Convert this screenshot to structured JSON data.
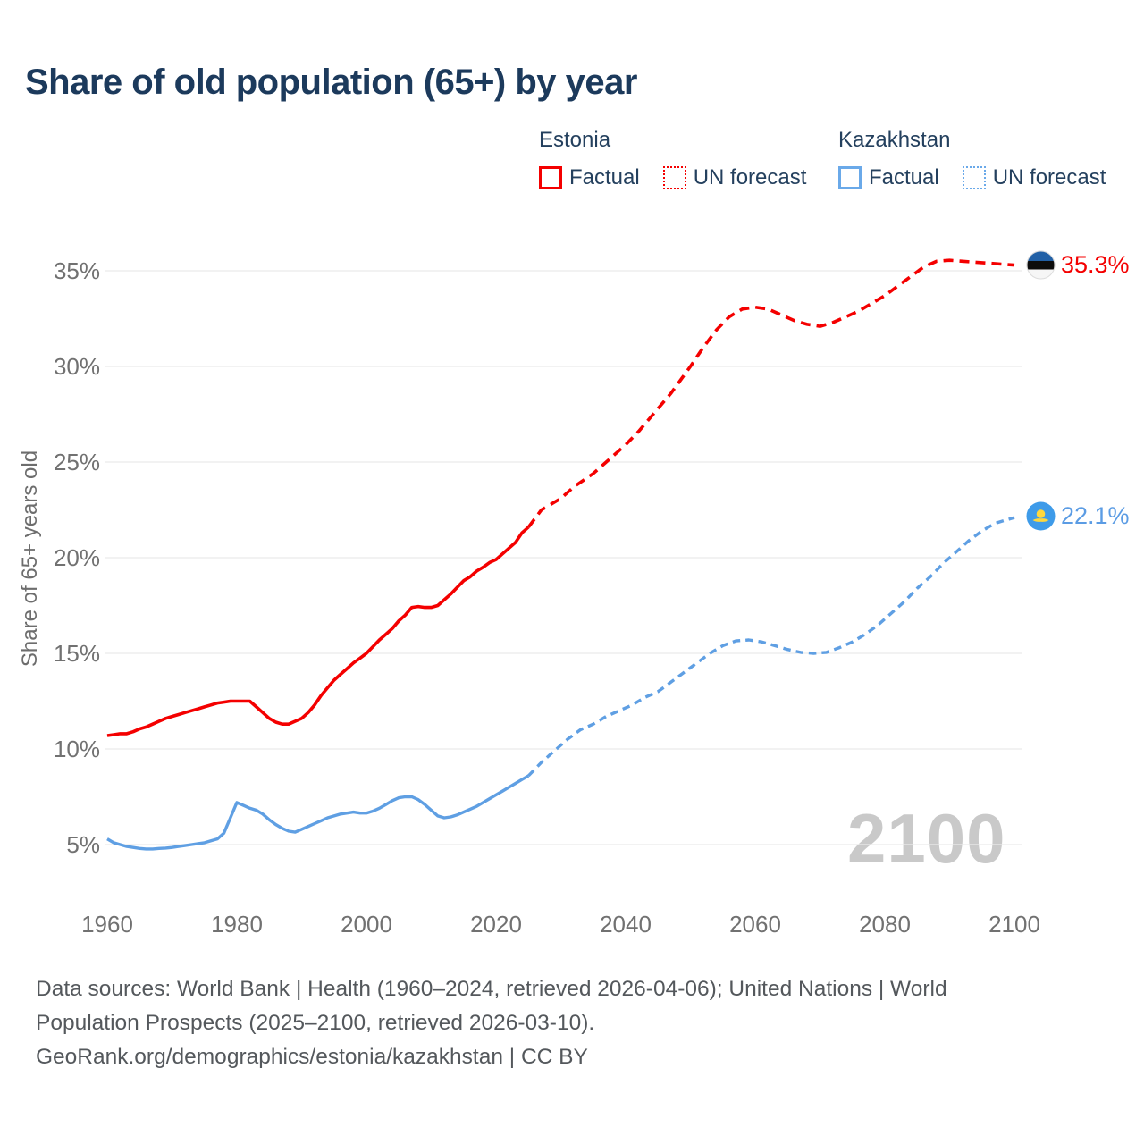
{
  "header": {
    "title": "Share of old population (65+) by year"
  },
  "legend": {
    "estonia": {
      "title": "Estonia",
      "factual_label": "Factual",
      "forecast_label": "UN forecast",
      "color": "#f40000"
    },
    "kazakhstan": {
      "title": "Kazakhstan",
      "factual_label": "Factual",
      "forecast_label": "UN forecast",
      "color": "#6aa9e9"
    }
  },
  "chart_data": {
    "type": "line",
    "title": "Share of old population (65+) by year",
    "xlabel": "",
    "ylabel": "Share of 65+ years old",
    "watermark": "2100",
    "grid": "horizontal-only",
    "gridline_color": "#ebebeb",
    "tick_color": "#717171",
    "x_ticks": [
      1960,
      1980,
      2000,
      2020,
      2040,
      2060,
      2080,
      2100
    ],
    "y_ticks": [
      5,
      10,
      15,
      20,
      25,
      30,
      35
    ],
    "y_tick_suffix": "%",
    "xlim": [
      1960,
      2100
    ],
    "ylim": [
      5,
      35
    ],
    "series": [
      {
        "name": "Estonia Factual",
        "country": "Estonia",
        "kind": "factual",
        "style": "solid",
        "color": "#f40000",
        "width": 3.6,
        "points": [
          [
            1960,
            10.7
          ],
          [
            1961,
            10.75
          ],
          [
            1962,
            10.8
          ],
          [
            1963,
            10.8
          ],
          [
            1964,
            10.9
          ],
          [
            1965,
            11.05
          ],
          [
            1966,
            11.15
          ],
          [
            1967,
            11.3
          ],
          [
            1968,
            11.45
          ],
          [
            1969,
            11.6
          ],
          [
            1970,
            11.7
          ],
          [
            1971,
            11.8
          ],
          [
            1972,
            11.9
          ],
          [
            1973,
            12.0
          ],
          [
            1974,
            12.1
          ],
          [
            1975,
            12.2
          ],
          [
            1976,
            12.3
          ],
          [
            1977,
            12.4
          ],
          [
            1978,
            12.45
          ],
          [
            1979,
            12.5
          ],
          [
            1980,
            12.5
          ],
          [
            1981,
            12.5
          ],
          [
            1982,
            12.5
          ],
          [
            1983,
            12.2
          ],
          [
            1984,
            11.9
          ],
          [
            1985,
            11.6
          ],
          [
            1986,
            11.4
          ],
          [
            1987,
            11.3
          ],
          [
            1988,
            11.3
          ],
          [
            1989,
            11.45
          ],
          [
            1990,
            11.6
          ],
          [
            1991,
            11.9
          ],
          [
            1992,
            12.3
          ],
          [
            1993,
            12.8
          ],
          [
            1994,
            13.2
          ],
          [
            1995,
            13.6
          ],
          [
            1996,
            13.9
          ],
          [
            1997,
            14.2
          ],
          [
            1998,
            14.5
          ],
          [
            1999,
            14.75
          ],
          [
            2000,
            15.0
          ],
          [
            2001,
            15.35
          ],
          [
            2002,
            15.7
          ],
          [
            2003,
            16.0
          ],
          [
            2004,
            16.3
          ],
          [
            2005,
            16.7
          ],
          [
            2006,
            17.0
          ],
          [
            2007,
            17.4
          ],
          [
            2008,
            17.45
          ],
          [
            2009,
            17.4
          ],
          [
            2010,
            17.4
          ],
          [
            2011,
            17.5
          ],
          [
            2012,
            17.8
          ],
          [
            2013,
            18.1
          ],
          [
            2014,
            18.45
          ],
          [
            2015,
            18.8
          ],
          [
            2016,
            19.0
          ],
          [
            2017,
            19.3
          ],
          [
            2018,
            19.5
          ],
          [
            2019,
            19.75
          ],
          [
            2020,
            19.9
          ],
          [
            2021,
            20.2
          ],
          [
            2022,
            20.5
          ],
          [
            2023,
            20.8
          ],
          [
            2024,
            21.3
          ],
          [
            2025,
            21.6
          ]
        ]
      },
      {
        "name": "Estonia UN forecast",
        "country": "Estonia",
        "kind": "forecast",
        "style": "dashed",
        "color": "#f40000",
        "width": 3.6,
        "dash": "11 7",
        "points": [
          [
            2025,
            21.6
          ],
          [
            2027,
            22.5
          ],
          [
            2030,
            23.1
          ],
          [
            2032,
            23.7
          ],
          [
            2035,
            24.4
          ],
          [
            2037,
            25.0
          ],
          [
            2040,
            25.9
          ],
          [
            2042,
            26.6
          ],
          [
            2045,
            27.8
          ],
          [
            2047,
            28.6
          ],
          [
            2050,
            30.0
          ],
          [
            2052,
            31.0
          ],
          [
            2054,
            31.9
          ],
          [
            2056,
            32.6
          ],
          [
            2058,
            33.0
          ],
          [
            2060,
            33.1
          ],
          [
            2062,
            33.0
          ],
          [
            2064,
            32.7
          ],
          [
            2066,
            32.4
          ],
          [
            2068,
            32.2
          ],
          [
            2070,
            32.1
          ],
          [
            2072,
            32.3
          ],
          [
            2074,
            32.6
          ],
          [
            2076,
            32.9
          ],
          [
            2078,
            33.3
          ],
          [
            2080,
            33.7
          ],
          [
            2082,
            34.2
          ],
          [
            2084,
            34.7
          ],
          [
            2086,
            35.2
          ],
          [
            2088,
            35.5
          ],
          [
            2090,
            35.55
          ],
          [
            2092,
            35.5
          ],
          [
            2094,
            35.45
          ],
          [
            2096,
            35.4
          ],
          [
            2098,
            35.35
          ],
          [
            2100,
            35.3
          ]
        ]
      },
      {
        "name": "Kazakhstan Factual",
        "country": "Kazakhstan",
        "kind": "factual",
        "style": "solid",
        "color": "#5f9fe3",
        "width": 3.4,
        "points": [
          [
            1960,
            5.3
          ],
          [
            1961,
            5.1
          ],
          [
            1962,
            5.0
          ],
          [
            1963,
            4.9
          ],
          [
            1964,
            4.85
          ],
          [
            1965,
            4.8
          ],
          [
            1966,
            4.77
          ],
          [
            1967,
            4.77
          ],
          [
            1968,
            4.8
          ],
          [
            1969,
            4.82
          ],
          [
            1970,
            4.85
          ],
          [
            1971,
            4.9
          ],
          [
            1972,
            4.95
          ],
          [
            1973,
            5.0
          ],
          [
            1974,
            5.05
          ],
          [
            1975,
            5.1
          ],
          [
            1976,
            5.2
          ],
          [
            1977,
            5.3
          ],
          [
            1978,
            5.6
          ],
          [
            1979,
            6.4
          ],
          [
            1980,
            7.2
          ],
          [
            1981,
            7.05
          ],
          [
            1982,
            6.9
          ],
          [
            1983,
            6.8
          ],
          [
            1984,
            6.6
          ],
          [
            1985,
            6.3
          ],
          [
            1986,
            6.05
          ],
          [
            1987,
            5.85
          ],
          [
            1988,
            5.7
          ],
          [
            1989,
            5.65
          ],
          [
            1990,
            5.8
          ],
          [
            1991,
            5.95
          ],
          [
            1992,
            6.1
          ],
          [
            1993,
            6.25
          ],
          [
            1994,
            6.4
          ],
          [
            1995,
            6.5
          ],
          [
            1996,
            6.6
          ],
          [
            1997,
            6.65
          ],
          [
            1998,
            6.7
          ],
          [
            1999,
            6.65
          ],
          [
            2000,
            6.65
          ],
          [
            2001,
            6.75
          ],
          [
            2002,
            6.9
          ],
          [
            2003,
            7.1
          ],
          [
            2004,
            7.3
          ],
          [
            2005,
            7.45
          ],
          [
            2006,
            7.5
          ],
          [
            2007,
            7.5
          ],
          [
            2008,
            7.35
          ],
          [
            2009,
            7.1
          ],
          [
            2010,
            6.8
          ],
          [
            2011,
            6.5
          ],
          [
            2012,
            6.4
          ],
          [
            2013,
            6.45
          ],
          [
            2014,
            6.55
          ],
          [
            2015,
            6.7
          ],
          [
            2016,
            6.85
          ],
          [
            2017,
            7.0
          ],
          [
            2018,
            7.2
          ],
          [
            2019,
            7.4
          ],
          [
            2020,
            7.6
          ],
          [
            2021,
            7.8
          ],
          [
            2022,
            8.0
          ],
          [
            2023,
            8.2
          ],
          [
            2024,
            8.4
          ],
          [
            2025,
            8.6
          ]
        ]
      },
      {
        "name": "Kazakhstan UN forecast",
        "country": "Kazakhstan",
        "kind": "forecast",
        "style": "dashed",
        "color": "#5f9fe3",
        "width": 3.4,
        "dash": "8.5 6",
        "points": [
          [
            2025,
            8.6
          ],
          [
            2027,
            9.3
          ],
          [
            2029,
            9.9
          ],
          [
            2031,
            10.5
          ],
          [
            2033,
            11.0
          ],
          [
            2035,
            11.3
          ],
          [
            2037,
            11.7
          ],
          [
            2039,
            12.0
          ],
          [
            2041,
            12.3
          ],
          [
            2043,
            12.7
          ],
          [
            2045,
            13.0
          ],
          [
            2047,
            13.5
          ],
          [
            2049,
            14.0
          ],
          [
            2051,
            14.5
          ],
          [
            2053,
            15.0
          ],
          [
            2055,
            15.4
          ],
          [
            2057,
            15.65
          ],
          [
            2059,
            15.7
          ],
          [
            2061,
            15.6
          ],
          [
            2063,
            15.4
          ],
          [
            2065,
            15.2
          ],
          [
            2067,
            15.05
          ],
          [
            2069,
            15.0
          ],
          [
            2071,
            15.05
          ],
          [
            2073,
            15.3
          ],
          [
            2075,
            15.6
          ],
          [
            2077,
            16.0
          ],
          [
            2079,
            16.5
          ],
          [
            2081,
            17.1
          ],
          [
            2083,
            17.7
          ],
          [
            2085,
            18.4
          ],
          [
            2087,
            19.0
          ],
          [
            2089,
            19.7
          ],
          [
            2091,
            20.3
          ],
          [
            2093,
            20.9
          ],
          [
            2095,
            21.4
          ],
          [
            2097,
            21.8
          ],
          [
            2099,
            22.0
          ],
          [
            2100,
            22.1
          ]
        ]
      }
    ],
    "end_labels": [
      {
        "series": "Estonia",
        "value_label": "35.3%",
        "color": "#f40000",
        "flag": "estonia-flag"
      },
      {
        "series": "Kazakhstan",
        "value_label": "22.1%",
        "color": "#5b9ce4",
        "flag": "kazakhstan-flag"
      }
    ],
    "legend_position": "top-right"
  },
  "footer": {
    "sources": "Data sources: World Bank | Health (1960–2024, retrieved 2026-04-06); United Nations | World Population Prospects (2025–2100, retrieved 2026-03-10).",
    "attribution": "GeoRank.org/demographics/estonia/kazakhstan | CC BY"
  }
}
